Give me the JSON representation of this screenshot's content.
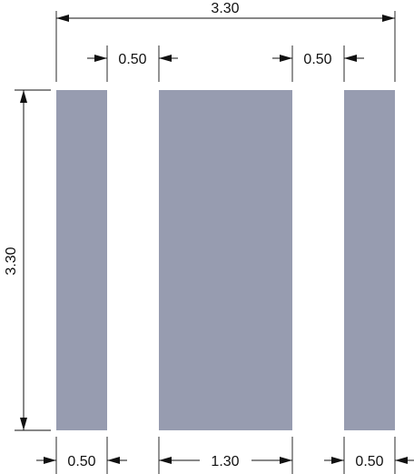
{
  "colors": {
    "pad_fill": "#979cb0",
    "line": "#111111",
    "background": "#ffffff"
  },
  "dimensions": {
    "overall_width": "3.30",
    "overall_height": "3.30",
    "gap_left": "0.50",
    "gap_right": "0.50",
    "pad_left_width": "0.50",
    "pad_center_width": "1.30",
    "pad_right_width": "0.50"
  }
}
